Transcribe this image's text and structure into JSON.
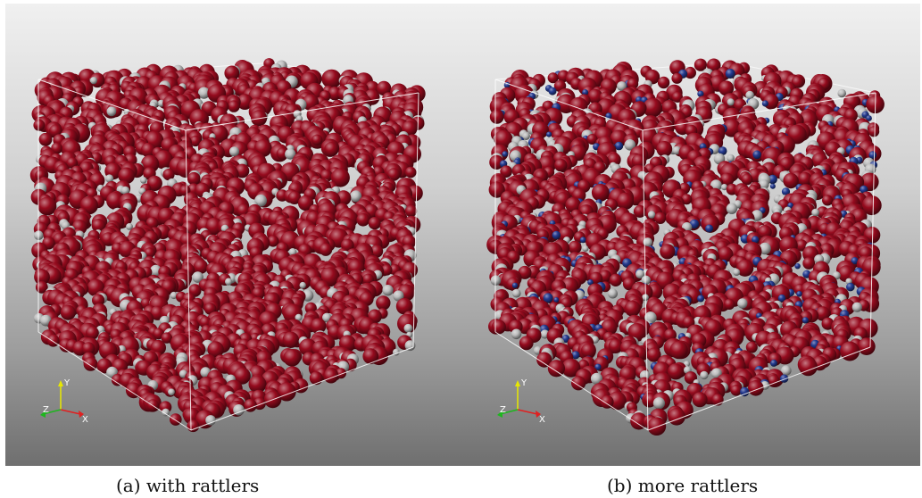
{
  "figure": {
    "panels": [
      {
        "id": "a",
        "caption": "(a) with rattlers",
        "particle_colors": {
          "contact": "#960b1e",
          "rattler": "#bdbdbd"
        },
        "rattler_fraction": 0.18,
        "extra_fraction": 0
      },
      {
        "id": "b",
        "caption": "(b) more rattlers",
        "particle_colors": {
          "contact": "#960b1e",
          "rattler": "#bdbdbd",
          "extra_rattler": "#243a8f"
        },
        "rattler_fraction": 0.18,
        "extra_fraction": 0.14
      }
    ],
    "axes_triad": {
      "labels": [
        "Y",
        "Z",
        "X"
      ],
      "colors": {
        "y": "#e8e800",
        "z": "#1fb51f",
        "x": "#e02020"
      }
    }
  }
}
